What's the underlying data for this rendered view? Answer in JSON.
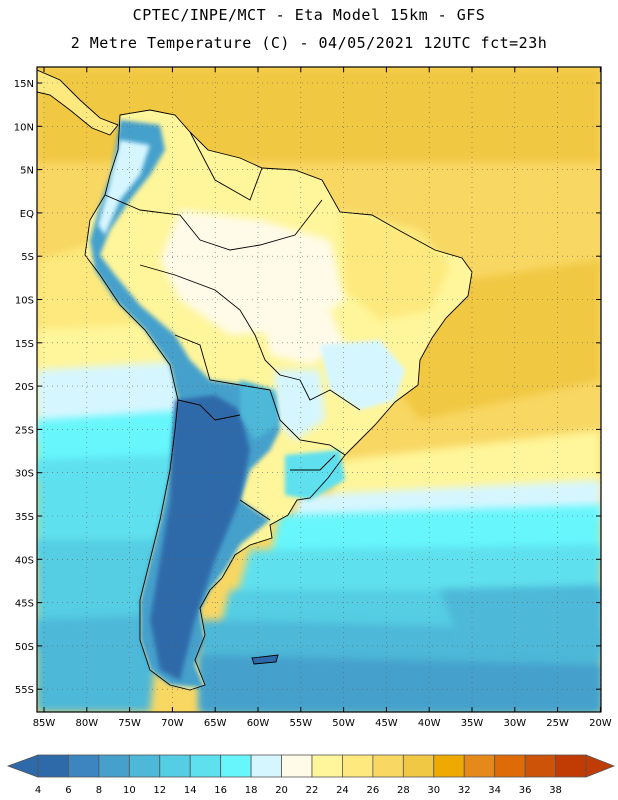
{
  "header": {
    "line1": "CPTEC/INPE/MCT -  Eta Model 15km - GFS",
    "line2": "2 Metre Temperature (C) - 04/05/2021 12UTC fct=23h"
  },
  "map": {
    "lat_labels": [
      "15N",
      "10N",
      "5N",
      "EQ",
      "5S",
      "10S",
      "15S",
      "20S",
      "25S",
      "30S",
      "35S",
      "40S",
      "45S",
      "50S",
      "55S"
    ],
    "lon_labels": [
      "85W",
      "80W",
      "75W",
      "70W",
      "65W",
      "60W",
      "55W",
      "50W",
      "45W",
      "40W",
      "35W",
      "30W",
      "25W",
      "20W"
    ]
  },
  "colorbar": {
    "labels": [
      "4",
      "6",
      "8",
      "10",
      "12",
      "14",
      "16",
      "18",
      "20",
      "22",
      "24",
      "26",
      "28",
      "30",
      "32",
      "34",
      "36",
      "38"
    ],
    "colors": [
      "#2e6aaa",
      "#3d85c0",
      "#45a0cc",
      "#4eb8d8",
      "#55cde3",
      "#5ee0ee",
      "#66f6fc",
      "#d6f6ff",
      "#fffbe8",
      "#fff59a",
      "#fde97d",
      "#f8d763",
      "#f1c843",
      "#eeaa00",
      "#e6891b",
      "#de6a08",
      "#cd5308",
      "#c13c05"
    ]
  }
}
